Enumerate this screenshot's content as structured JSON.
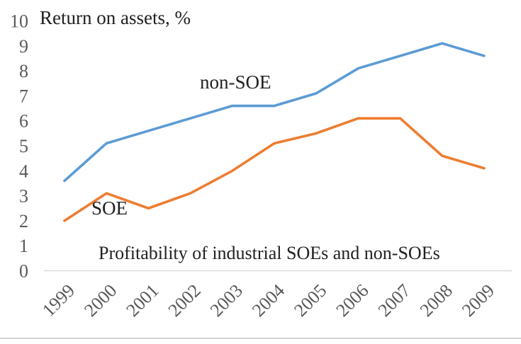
{
  "header": {
    "title": "Return on assets, %"
  },
  "subtitle": "Profitability of industrial SOEs and non-SOEs",
  "axis": {
    "tick_color": "#595959",
    "line_color": "#d9d9d9"
  },
  "chart_data": {
    "type": "line",
    "title": "Return on assets, %",
    "subtitle": "Profitability of industrial SOEs and non-SOEs",
    "x": [
      1999,
      2000,
      2001,
      2002,
      2003,
      2004,
      2005,
      2006,
      2007,
      2008,
      2009
    ],
    "series": [
      {
        "name": "non-SOE",
        "color": "#5b9bd5",
        "values": [
          3.6,
          5.1,
          5.6,
          6.1,
          6.6,
          6.6,
          7.1,
          8.1,
          8.6,
          9.1,
          8.6
        ]
      },
      {
        "name": "SOE",
        "color": "#ed7d31",
        "values": [
          2.0,
          3.1,
          2.5,
          3.1,
          4.0,
          5.1,
          5.5,
          6.1,
          6.1,
          4.6,
          4.1
        ]
      }
    ],
    "xlabel": "",
    "ylabel": "Return on assets, %",
    "ylim": [
      0,
      10
    ],
    "yticks": [
      0,
      1,
      2,
      3,
      4,
      5,
      6,
      7,
      8,
      9,
      10
    ],
    "grid": false,
    "legend_position": "inline-annotations",
    "annotations": [
      {
        "text": "non-SOE",
        "attached_to": "non-SOE"
      },
      {
        "text": "SOE",
        "attached_to": "SOE"
      }
    ]
  }
}
